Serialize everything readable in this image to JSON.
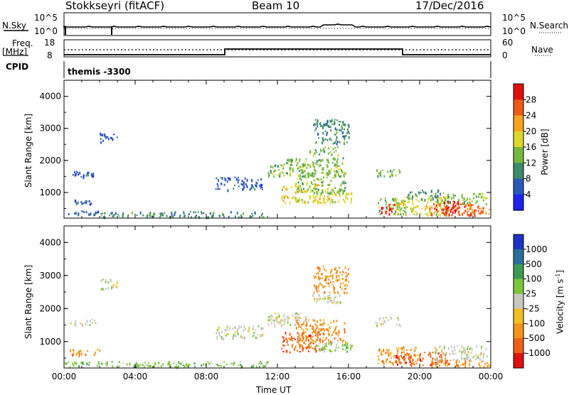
{
  "header": {
    "station": "Stokkseyri (fitACF)",
    "beam": "Beam 10",
    "date": "17/Dec/2016"
  },
  "housekeeping": {
    "nsky_label": "N.Sky",
    "nsearch_label": "N.Search",
    "log_tick_top": "10^5",
    "log_tick_bottom": "10^0",
    "freq_label": "Freq.",
    "freq_unit": "[MHz]",
    "freq_ticks": [
      "18",
      "8"
    ],
    "nave_label": "Nave",
    "nave_ticks": [
      "60",
      "0"
    ],
    "cpid_label": "CPID",
    "cpid_value": "themis -3300"
  },
  "chart_data": [
    {
      "type": "heatmap",
      "name": "power",
      "ylabel": "Slant Range [km]",
      "yticks": [
        "1000",
        "2000",
        "3000",
        "4000"
      ],
      "ylim": [
        200,
        4500
      ],
      "xlim_hours": [
        0,
        24
      ],
      "colorbar_label": "Power [dB]",
      "colorbar_ticks": [
        "4",
        "8",
        "12",
        "16",
        "20",
        "24",
        "28"
      ],
      "colorbar_colors": [
        "#1d22f0",
        "#2b58b8",
        "#3e8a6b",
        "#76b840",
        "#dcd82a",
        "#f5a21c",
        "#ee5a16",
        "#e01010"
      ],
      "regions": [
        {
          "t0": 0.3,
          "t1": 1.8,
          "r0": 1500,
          "r1": 1700,
          "level": 1
        },
        {
          "t0": 0.2,
          "t1": 2.0,
          "r0": 300,
          "r1": 450,
          "level": 1
        },
        {
          "t0": 0.5,
          "t1": 1.5,
          "r0": 650,
          "r1": 800,
          "level": 1
        },
        {
          "t0": 2.0,
          "t1": 3.0,
          "r0": 2600,
          "r1": 2900,
          "level": 1
        },
        {
          "t0": 2.0,
          "t1": 11.5,
          "r0": 250,
          "r1": 420,
          "level": 2
        },
        {
          "t0": 8.5,
          "t1": 11.2,
          "r0": 1100,
          "r1": 1500,
          "level": 1
        },
        {
          "t0": 11.4,
          "t1": 13.8,
          "r0": 1500,
          "r1": 1900,
          "level": 3
        },
        {
          "t0": 12.2,
          "t1": 14.6,
          "r0": 700,
          "r1": 1300,
          "level": 4
        },
        {
          "t0": 12.4,
          "t1": 15.8,
          "r0": 1700,
          "r1": 2100,
          "level": 3
        },
        {
          "t0": 13.0,
          "t1": 15.8,
          "r0": 1000,
          "r1": 1700,
          "level": 3
        },
        {
          "t0": 14.0,
          "t1": 16.2,
          "r0": 700,
          "r1": 1000,
          "level": 4
        },
        {
          "t0": 13.8,
          "t1": 15.6,
          "r0": 2200,
          "r1": 2450,
          "level": 3
        },
        {
          "t0": 14.0,
          "t1": 16.0,
          "r0": 2500,
          "r1": 3300,
          "level": 2
        },
        {
          "t0": 17.5,
          "t1": 18.9,
          "r0": 1500,
          "r1": 1750,
          "level": 3
        },
        {
          "t0": 17.6,
          "t1": 19.2,
          "r0": 350,
          "r1": 850,
          "level": 3
        },
        {
          "t0": 18.6,
          "t1": 21.5,
          "r0": 300,
          "r1": 900,
          "level": 4
        },
        {
          "t0": 19.3,
          "t1": 21.2,
          "r0": 800,
          "r1": 1100,
          "level": 2
        },
        {
          "t0": 20.5,
          "t1": 23.9,
          "r0": 300,
          "r1": 700,
          "level": 6
        },
        {
          "t0": 20.8,
          "t1": 23.8,
          "r0": 650,
          "r1": 1000,
          "level": 3
        },
        {
          "t0": 17.8,
          "t1": 18.6,
          "r0": 350,
          "r1": 650,
          "level": 7
        },
        {
          "t0": 21.2,
          "t1": 22.3,
          "r0": 400,
          "r1": 750,
          "level": 7
        },
        {
          "t0": 22.5,
          "t1": 23.6,
          "r0": 300,
          "r1": 650,
          "level": 6
        }
      ]
    },
    {
      "type": "heatmap",
      "name": "velocity",
      "ylabel": "Slant Range [km]",
      "yticks": [
        "1000",
        "2000",
        "3000",
        "4000"
      ],
      "ylim": [
        200,
        4500
      ],
      "xlim_hours": [
        0,
        24
      ],
      "xticks": [
        "00:00",
        "04:00",
        "08:00",
        "12:00",
        "16:00",
        "20:00",
        "00:00"
      ],
      "xlabel": "Time UT",
      "colorbar_label": "Velocity [m s^-1]",
      "colorbar_ticks": [
        "1000",
        "500",
        "100",
        "25",
        "-25",
        "-100",
        "-500",
        "-1000"
      ],
      "colorbar_colors": [
        "#1c32c4",
        "#2a6e9a",
        "#3e9a52",
        "#7cc63a",
        "#c8c8c0",
        "#f0c024",
        "#f2941c",
        "#ee6018",
        "#e01010"
      ],
      "regions": [
        {
          "t0": 0.3,
          "t1": 1.8,
          "r0": 1500,
          "r1": 1700,
          "level": 4
        },
        {
          "t0": 0.2,
          "t1": 2.0,
          "r0": 600,
          "r1": 780,
          "level": 6
        },
        {
          "t0": 0.0,
          "t1": 11.5,
          "r0": 250,
          "r1": 420,
          "level": 3
        },
        {
          "t0": 2.0,
          "t1": 3.0,
          "r0": 2600,
          "r1": 2900,
          "level": 4
        },
        {
          "t0": 8.5,
          "t1": 11.2,
          "r0": 1100,
          "r1": 1500,
          "level": 4
        },
        {
          "t0": 11.4,
          "t1": 13.8,
          "r0": 1500,
          "r1": 1900,
          "level": 4
        },
        {
          "t0": 12.2,
          "t1": 14.6,
          "r0": 700,
          "r1": 1300,
          "level": 7
        },
        {
          "t0": 13.0,
          "t1": 15.8,
          "r0": 1000,
          "r1": 1700,
          "level": 6
        },
        {
          "t0": 14.0,
          "t1": 16.2,
          "r0": 700,
          "r1": 1000,
          "level": 3
        },
        {
          "t0": 13.8,
          "t1": 15.6,
          "r0": 2200,
          "r1": 2450,
          "level": 4
        },
        {
          "t0": 14.0,
          "t1": 16.0,
          "r0": 2500,
          "r1": 3300,
          "level": 6
        },
        {
          "t0": 17.5,
          "t1": 18.9,
          "r0": 1500,
          "r1": 1750,
          "level": 4
        },
        {
          "t0": 17.6,
          "t1": 20.0,
          "r0": 350,
          "r1": 850,
          "level": 6
        },
        {
          "t0": 18.6,
          "t1": 21.5,
          "r0": 300,
          "r1": 700,
          "level": 7
        },
        {
          "t0": 20.8,
          "t1": 23.8,
          "r0": 400,
          "r1": 900,
          "level": 4
        },
        {
          "t0": 20.5,
          "t1": 23.9,
          "r0": 250,
          "r1": 450,
          "level": 6
        }
      ]
    }
  ]
}
